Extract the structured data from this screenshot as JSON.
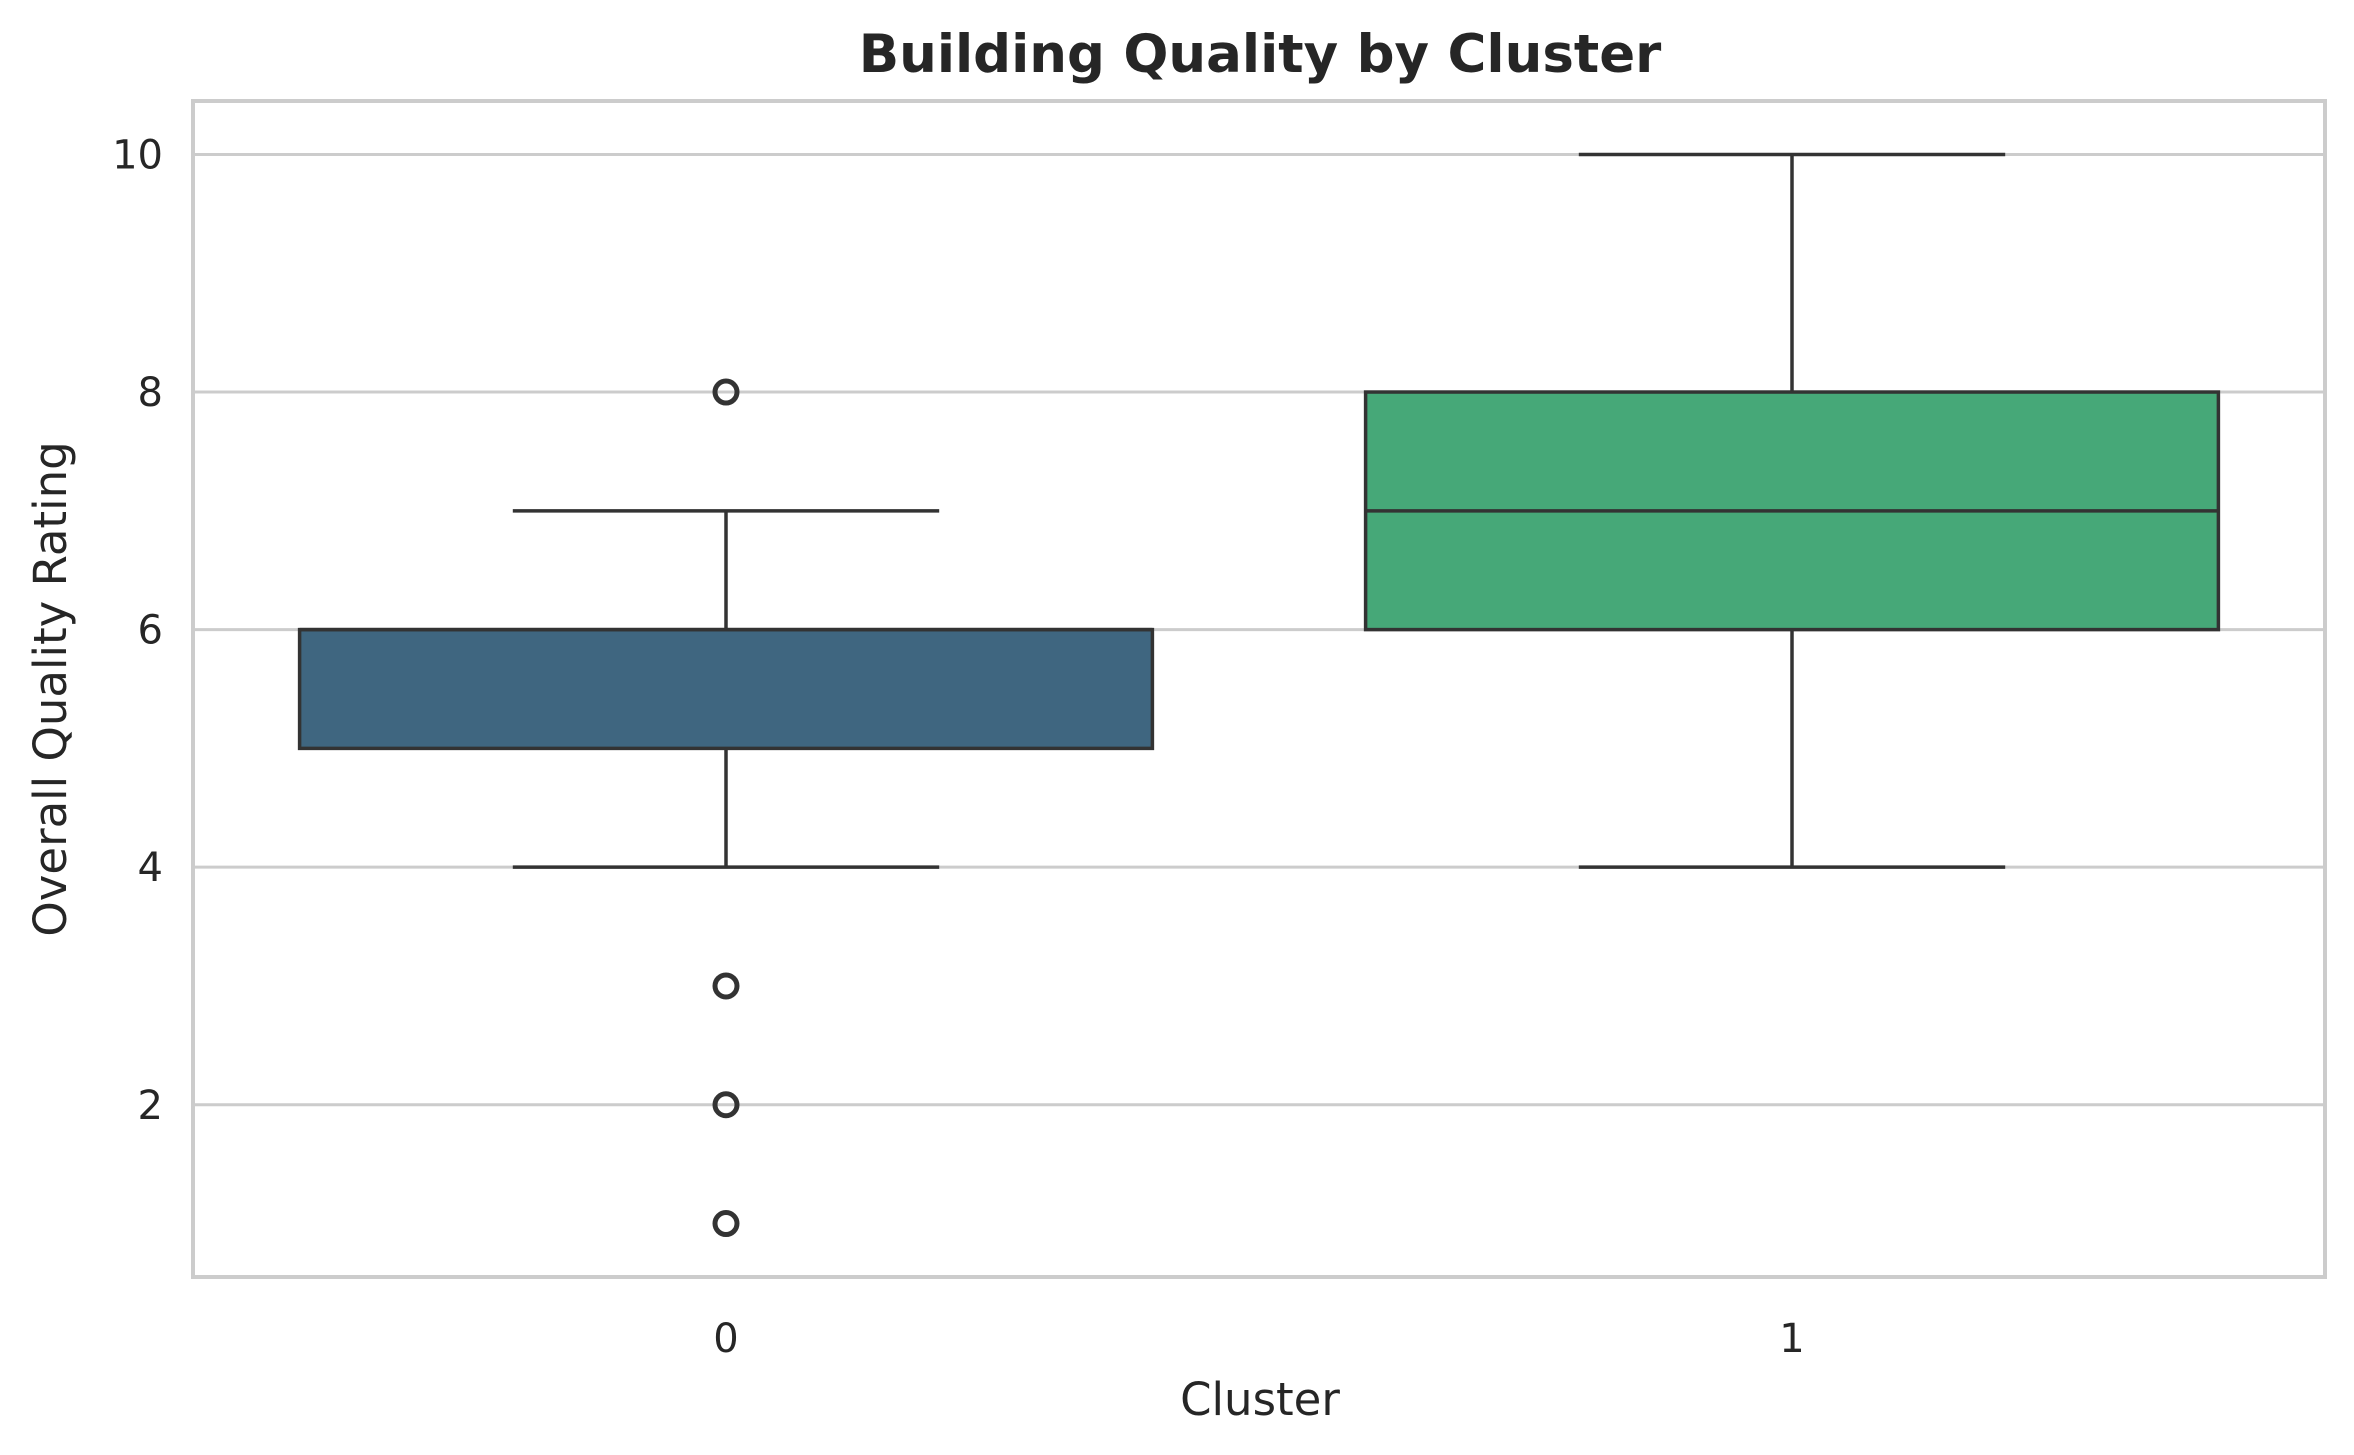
{
  "chart_data": {
    "type": "box",
    "title": "Building Quality by Cluster",
    "xlabel": "Cluster",
    "ylabel": "Overall Quality Rating",
    "categories": [
      "0",
      "1"
    ],
    "ylim": [
      0.55,
      10.45
    ],
    "yticks": [
      2,
      4,
      6,
      8,
      10
    ],
    "grid": true,
    "series": [
      {
        "category": "0",
        "whisker_low": 4,
        "q1": 5,
        "median": 6,
        "q3": 6,
        "whisker_high": 7,
        "outliers": [
          8,
          3,
          2,
          1
        ],
        "color": "#3f6680"
      },
      {
        "category": "1",
        "whisker_low": 4,
        "q1": 6,
        "median": 7,
        "q3": 8,
        "whisker_high": 10,
        "outliers": [],
        "color": "#46a878"
      }
    ]
  }
}
